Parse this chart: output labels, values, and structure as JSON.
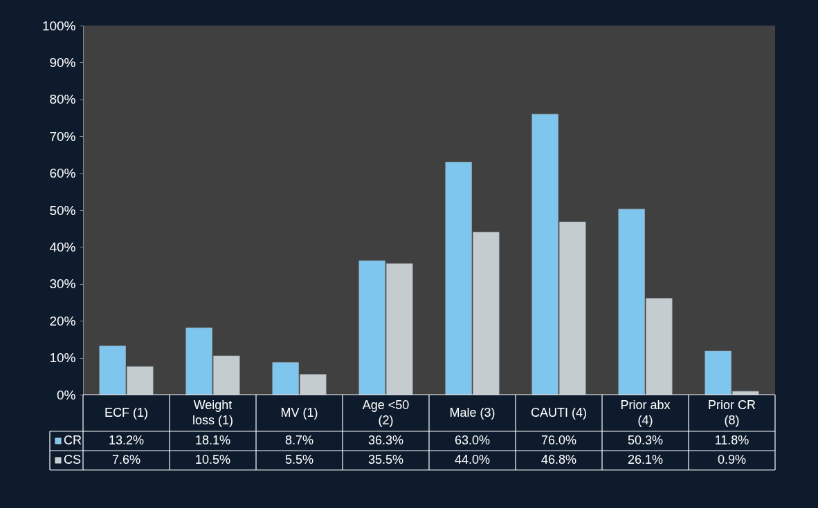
{
  "chart_data": {
    "type": "bar",
    "categories": [
      "ECF (1)",
      "Weight loss (1)",
      "MV (1)",
      "Age <50 (2)",
      "Male (3)",
      "CAUTI (4)",
      "Prior abx (4)",
      "Prior CR (8)"
    ],
    "series": [
      {
        "name": "CR",
        "color": "#7fc6ee",
        "values": [
          13.2,
          18.1,
          8.7,
          36.3,
          63.0,
          76.0,
          50.3,
          11.8
        ],
        "value_labels": [
          "13.2%",
          "18.1%",
          "8.7%",
          "36.3%",
          "63.0%",
          "76.0%",
          "50.3%",
          "11.8%"
        ]
      },
      {
        "name": "CS",
        "color": "#c5ccd0",
        "values": [
          7.6,
          10.5,
          5.5,
          35.5,
          44.0,
          46.8,
          26.1,
          0.9
        ],
        "value_labels": [
          "7.6%",
          "10.5%",
          "5.5%",
          "35.5%",
          "44.0%",
          "46.8%",
          "26.1%",
          "0.9%"
        ]
      }
    ],
    "ylim": [
      0,
      100
    ],
    "yticks": [
      {
        "value": 0,
        "label": "0%"
      },
      {
        "value": 10,
        "label": "10%"
      },
      {
        "value": 20,
        "label": "20%"
      },
      {
        "value": 30,
        "label": "30%"
      },
      {
        "value": 40,
        "label": "40%"
      },
      {
        "value": 50,
        "label": "50%"
      },
      {
        "value": 60,
        "label": "60%"
      },
      {
        "value": 70,
        "label": "70%"
      },
      {
        "value": 80,
        "label": "80%"
      },
      {
        "value": 90,
        "label": "90%"
      },
      {
        "value": 100,
        "label": "100%"
      }
    ],
    "grid": false,
    "legend": "bottom"
  }
}
